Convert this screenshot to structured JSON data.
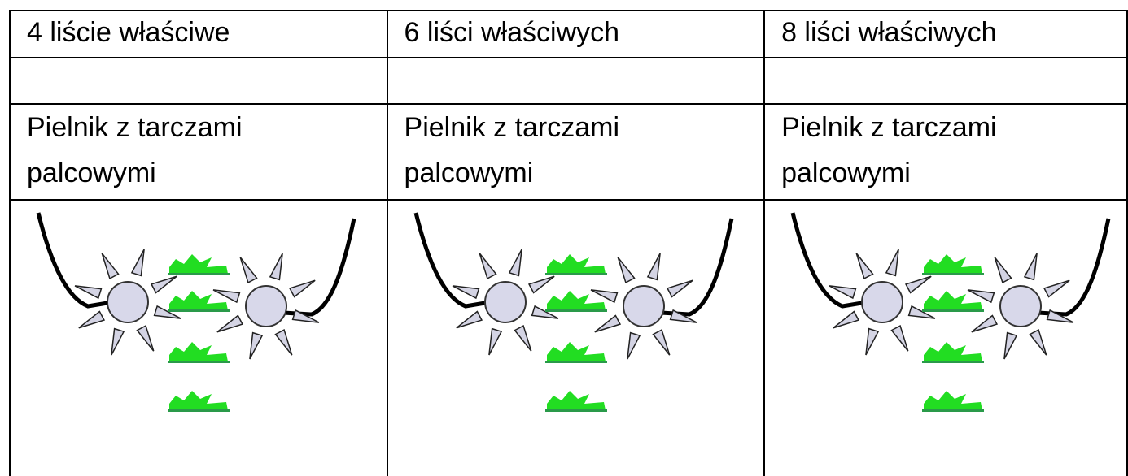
{
  "table": {
    "header": [
      "4 liście właściwe",
      "6 liści właściwych",
      "8 liści właściwych"
    ],
    "tools": [
      "Pielnik z tarczami palcowymi",
      "Pielnik z tarczami palcowymi",
      "Pielnik z tarczami palcowymi"
    ]
  }
}
